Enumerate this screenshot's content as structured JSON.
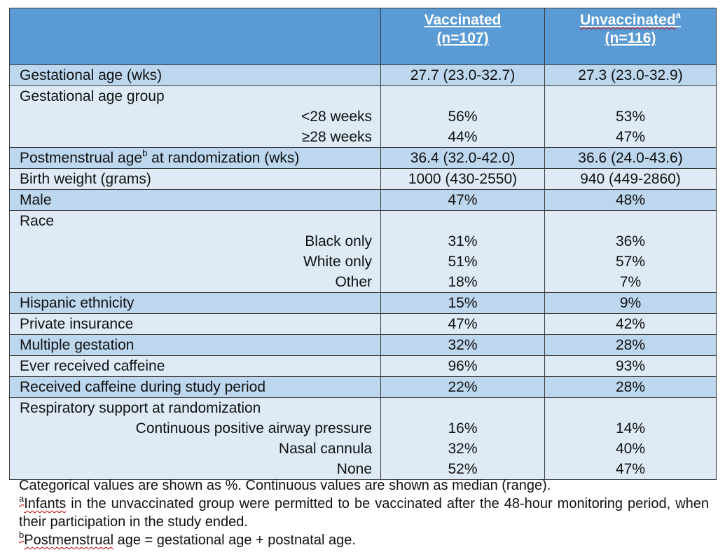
{
  "header": {
    "col1_title": "Vaccinated",
    "col1_n": "(n=107)",
    "col2_title": "Unvaccinated",
    "col2_sup": "a",
    "col2_n": "(n=116)"
  },
  "rows": [
    {
      "shade": "dark",
      "lines": [
        {
          "label": "Gestational age (wks)",
          "sub": false,
          "v1": "27.7 (23.0-32.7)",
          "v2": "27.3 (23.0-32.9)"
        }
      ]
    },
    {
      "shade": "light",
      "lines": [
        {
          "label": "Gestational age group",
          "sub": false,
          "v1": "",
          "v2": ""
        },
        {
          "label": "<28 weeks",
          "sub": true,
          "v1": "56%",
          "v2": "53%"
        },
        {
          "label": "≥28 weeks",
          "sub": true,
          "v1": "44%",
          "v2": "47%"
        }
      ]
    },
    {
      "shade": "dark",
      "lines": [
        {
          "label": "Postmenstrual age",
          "label_sup": "b",
          "label_tail": " at randomization (wks)",
          "sub": false,
          "v1": "36.4 (32.0-42.0)",
          "v2": "36.6 (24.0-43.6)"
        }
      ]
    },
    {
      "shade": "light",
      "lines": [
        {
          "label": "Birth weight (grams)",
          "sub": false,
          "v1": "1000 (430-2550)",
          "v2": "940 (449-2860)"
        }
      ]
    },
    {
      "shade": "dark",
      "lines": [
        {
          "label": "Male",
          "sub": false,
          "v1": "47%",
          "v2": "48%"
        }
      ]
    },
    {
      "shade": "light",
      "lines": [
        {
          "label": "Race",
          "sub": false,
          "v1": "",
          "v2": ""
        },
        {
          "label": "Black only",
          "sub": true,
          "v1": "31%",
          "v2": "36%"
        },
        {
          "label": "White only",
          "sub": true,
          "v1": "51%",
          "v2": "57%"
        },
        {
          "label": "Other",
          "sub": true,
          "v1": "18%",
          "v2": "7%"
        }
      ]
    },
    {
      "shade": "dark",
      "lines": [
        {
          "label": "Hispanic ethnicity",
          "sub": false,
          "v1": "15%",
          "v2": "9%"
        }
      ]
    },
    {
      "shade": "light",
      "lines": [
        {
          "label": "Private insurance",
          "sub": false,
          "v1": "47%",
          "v2": "42%"
        }
      ]
    },
    {
      "shade": "dark",
      "lines": [
        {
          "label": "Multiple gestation",
          "sub": false,
          "v1": "32%",
          "v2": "28%"
        }
      ]
    },
    {
      "shade": "light",
      "lines": [
        {
          "label": "Ever received caffeine",
          "sub": false,
          "v1": "96%",
          "v2": "93%"
        }
      ]
    },
    {
      "shade": "dark",
      "lines": [
        {
          "label": "Received caffeine during study period",
          "sub": false,
          "v1": "22%",
          "v2": "28%"
        }
      ]
    },
    {
      "shade": "light",
      "lines": [
        {
          "label": "Respiratory support at randomization",
          "sub": false,
          "v1": "",
          "v2": ""
        },
        {
          "label": "Continuous positive airway pressure",
          "sub": true,
          "v1": "16%",
          "v2": "14%"
        },
        {
          "label": "Nasal cannula",
          "sub": true,
          "v1": "32%",
          "v2": "40%"
        },
        {
          "label": "None",
          "sub": true,
          "v1": "52%",
          "v2": "47%"
        }
      ]
    }
  ],
  "notes": {
    "line1": "Categorical values are shown as %. Continuous values are shown as median (range).",
    "note_a_sup": "a",
    "note_a_text": "Infants in the unvaccinated group were permitted to be vaccinated after the 48-hour monitoring period, when their participation in the study ended.",
    "note_b_sup": "b",
    "note_b_text": "Postmenstrual age = gestational age + postnatal age."
  },
  "colors": {
    "header_bg": "#5b9bd5",
    "row_dark": "#bdd7ee",
    "row_light": "#deebf7"
  }
}
